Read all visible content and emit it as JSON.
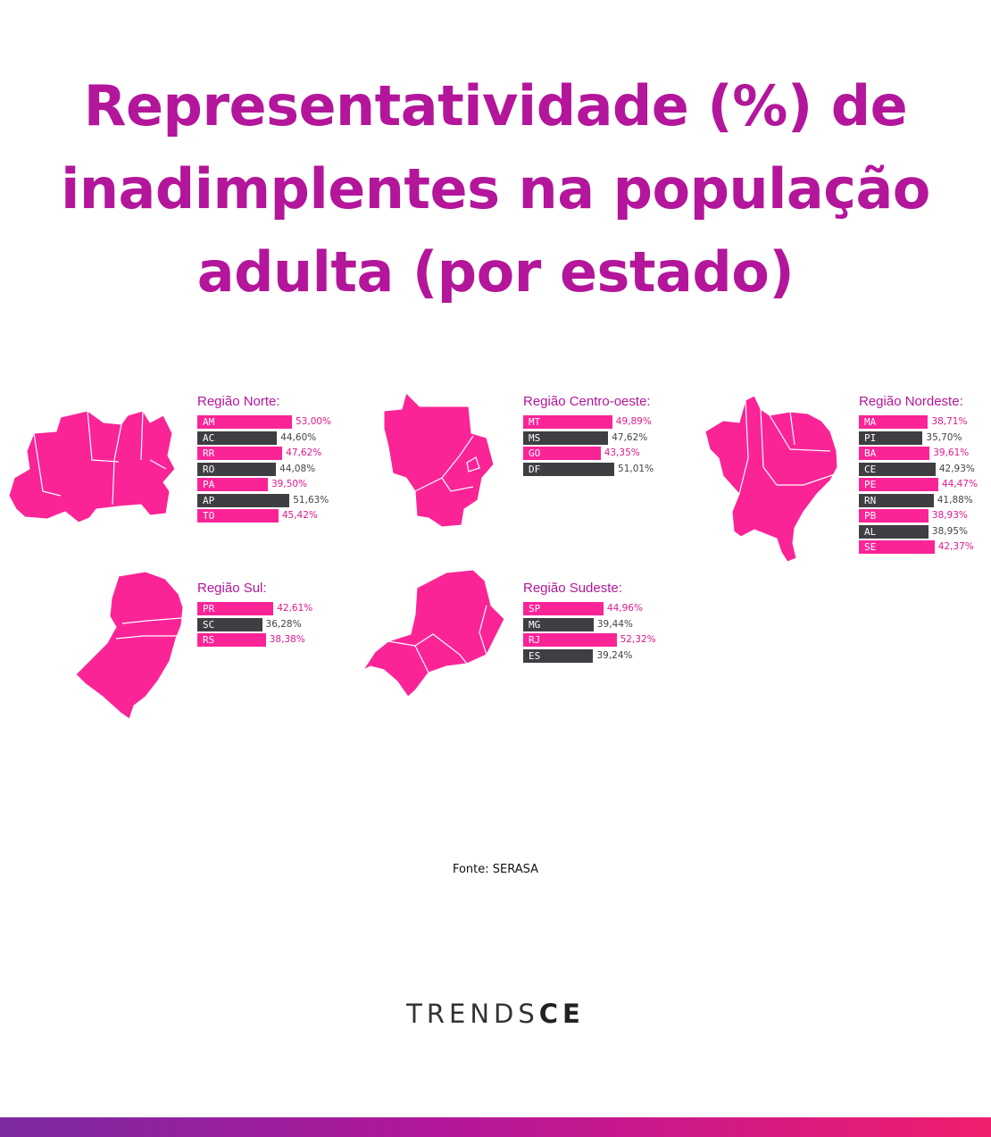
{
  "header": {
    "title_lines": [
      "Representatividade (%) de",
      "inadimplentes na população",
      "adulta (por estado)"
    ]
  },
  "colors": {
    "pink": "#fa2497",
    "dark": "#3e3e43",
    "title": "#b3169a",
    "pink_text": "#e0198f",
    "dark_text": "#444444"
  },
  "chart_data": [
    {
      "type": "bar",
      "title": "Região Norte:",
      "categories": [
        "AM",
        "AC",
        "RR",
        "RO",
        "PA",
        "AP",
        "TO"
      ],
      "values": [
        53.0,
        44.6,
        47.62,
        44.08,
        39.5,
        51.63,
        45.42
      ],
      "labels": [
        "53,00%",
        "44,60%",
        "47,62%",
        "44,08%",
        "39,50%",
        "51,63%",
        "45,42%"
      ],
      "colors": [
        "pink",
        "dark",
        "pink",
        "dark",
        "pink",
        "dark",
        "pink"
      ]
    },
    {
      "type": "bar",
      "title": "Região Centro-oeste:",
      "categories": [
        "MT",
        "MS",
        "GO",
        "DF"
      ],
      "values": [
        49.89,
        47.62,
        43.35,
        51.01
      ],
      "labels": [
        "49,89%",
        "47,62%",
        "43,35%",
        "51,01%"
      ],
      "colors": [
        "pink",
        "dark",
        "pink",
        "dark"
      ]
    },
    {
      "type": "bar",
      "title": "Região Nordeste:",
      "categories": [
        "MA",
        "PI",
        "BA",
        "CE",
        "PE",
        "RN",
        "PB",
        "AL",
        "SE"
      ],
      "values": [
        38.71,
        35.7,
        39.61,
        42.93,
        44.47,
        41.88,
        38.93,
        38.95,
        42.37
      ],
      "labels": [
        "38,71%",
        "35,70%",
        "39,61%",
        "42,93%",
        "44,47%",
        "41,88%",
        "38,93%",
        "38,95%",
        "42,37%"
      ],
      "colors": [
        "pink",
        "dark",
        "pink",
        "dark",
        "pink",
        "dark",
        "pink",
        "dark",
        "pink"
      ]
    },
    {
      "type": "bar",
      "title": "Região Sul:",
      "categories": [
        "PR",
        "SC",
        "RS"
      ],
      "values": [
        42.61,
        36.28,
        38.38
      ],
      "labels": [
        "42,61%",
        "36,28%",
        "38,38%"
      ],
      "colors": [
        "pink",
        "dark",
        "pink"
      ]
    },
    {
      "type": "bar",
      "title": "Região Sudeste:",
      "categories": [
        "SP",
        "MG",
        "RJ",
        "ES"
      ],
      "values": [
        44.96,
        39.44,
        52.32,
        39.24
      ],
      "labels": [
        "44,96%",
        "39,44%",
        "52,32%",
        "39,24%"
      ],
      "colors": [
        "pink",
        "dark",
        "pink",
        "dark"
      ]
    }
  ],
  "footer": {
    "source": "Fonte: SERASA",
    "brand_light": "TRENDS",
    "brand_bold": "CE"
  }
}
